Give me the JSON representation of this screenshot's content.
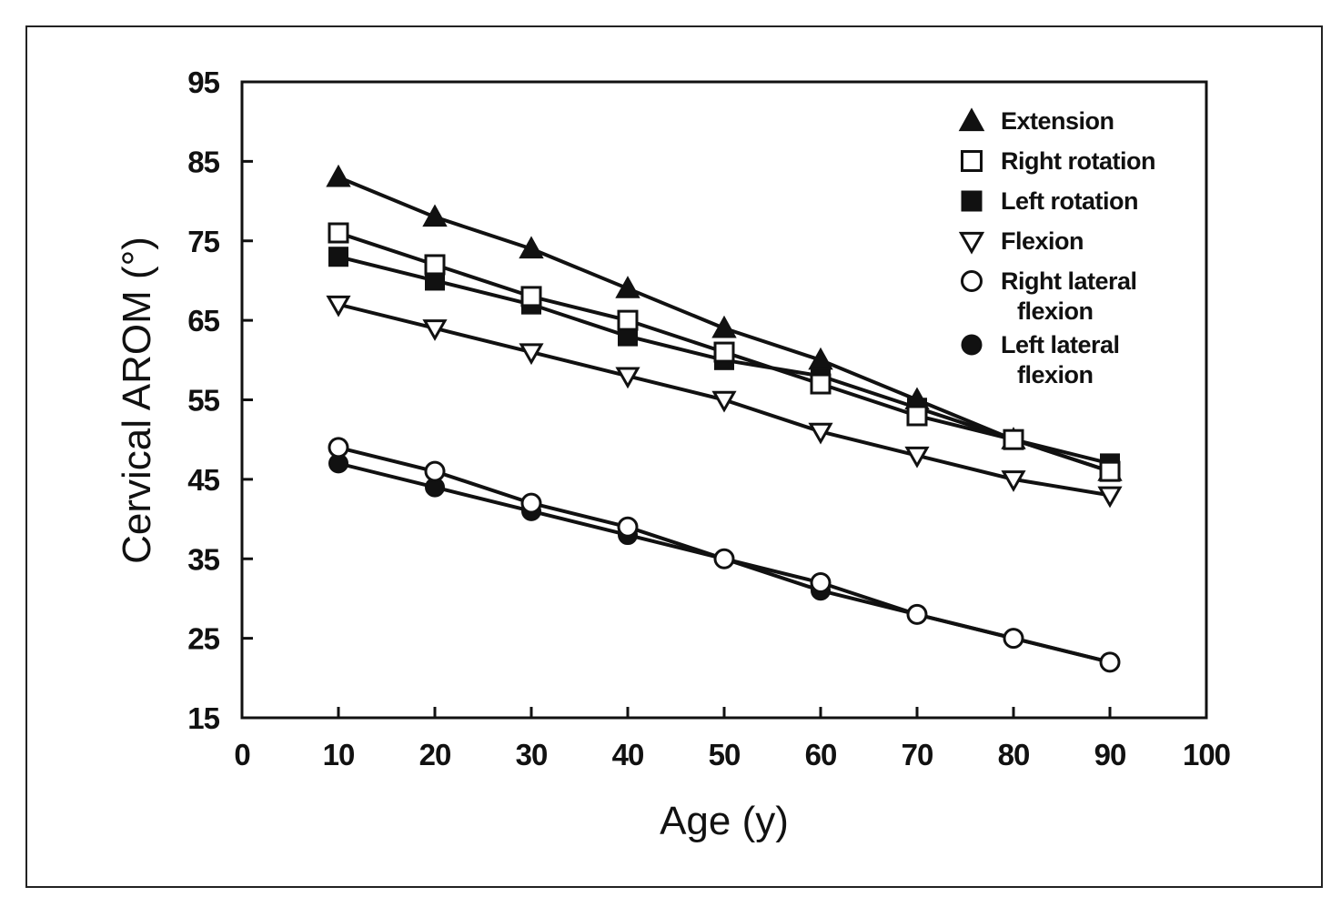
{
  "chart_data": {
    "type": "line",
    "title": "",
    "xlabel": "Age (y)",
    "ylabel": "Cervical AROM (°)",
    "xlim": [
      0,
      100
    ],
    "ylim": [
      15,
      95
    ],
    "xticks": [
      0,
      10,
      20,
      30,
      40,
      50,
      60,
      70,
      80,
      90,
      100
    ],
    "yticks": [
      15,
      25,
      35,
      45,
      55,
      65,
      75,
      85,
      95
    ],
    "grid": false,
    "legend_position": "top-right",
    "x": [
      10,
      20,
      30,
      40,
      50,
      60,
      70,
      80,
      90
    ],
    "series": [
      {
        "name": "Extension",
        "marker": "triangle-up-filled",
        "values": [
          83,
          78,
          74,
          69,
          64,
          60,
          55,
          50,
          46
        ]
      },
      {
        "name": "Right rotation",
        "marker": "square-open",
        "values": [
          76,
          72,
          68,
          65,
          61,
          57,
          53,
          50,
          46
        ]
      },
      {
        "name": "Left rotation",
        "marker": "square-filled",
        "values": [
          73,
          70,
          67,
          63,
          60,
          58,
          54,
          50,
          47
        ]
      },
      {
        "name": "Flexion",
        "marker": "triangle-down-open",
        "values": [
          67,
          64,
          61,
          58,
          55,
          51,
          48,
          45,
          43
        ]
      },
      {
        "name": "Right lateral flexion",
        "legend_lines": [
          "Right lateral",
          "flexion"
        ],
        "marker": "circle-open",
        "values": [
          49,
          46,
          42,
          39,
          35,
          32,
          28,
          25,
          22
        ]
      },
      {
        "name": "Left lateral flexion",
        "legend_lines": [
          "Left lateral",
          "flexion"
        ],
        "marker": "circle-filled",
        "values": [
          47,
          44,
          41,
          38,
          35,
          31,
          28,
          25,
          22
        ]
      }
    ]
  },
  "colors": {
    "ink": "#111111",
    "background": "#ffffff"
  }
}
